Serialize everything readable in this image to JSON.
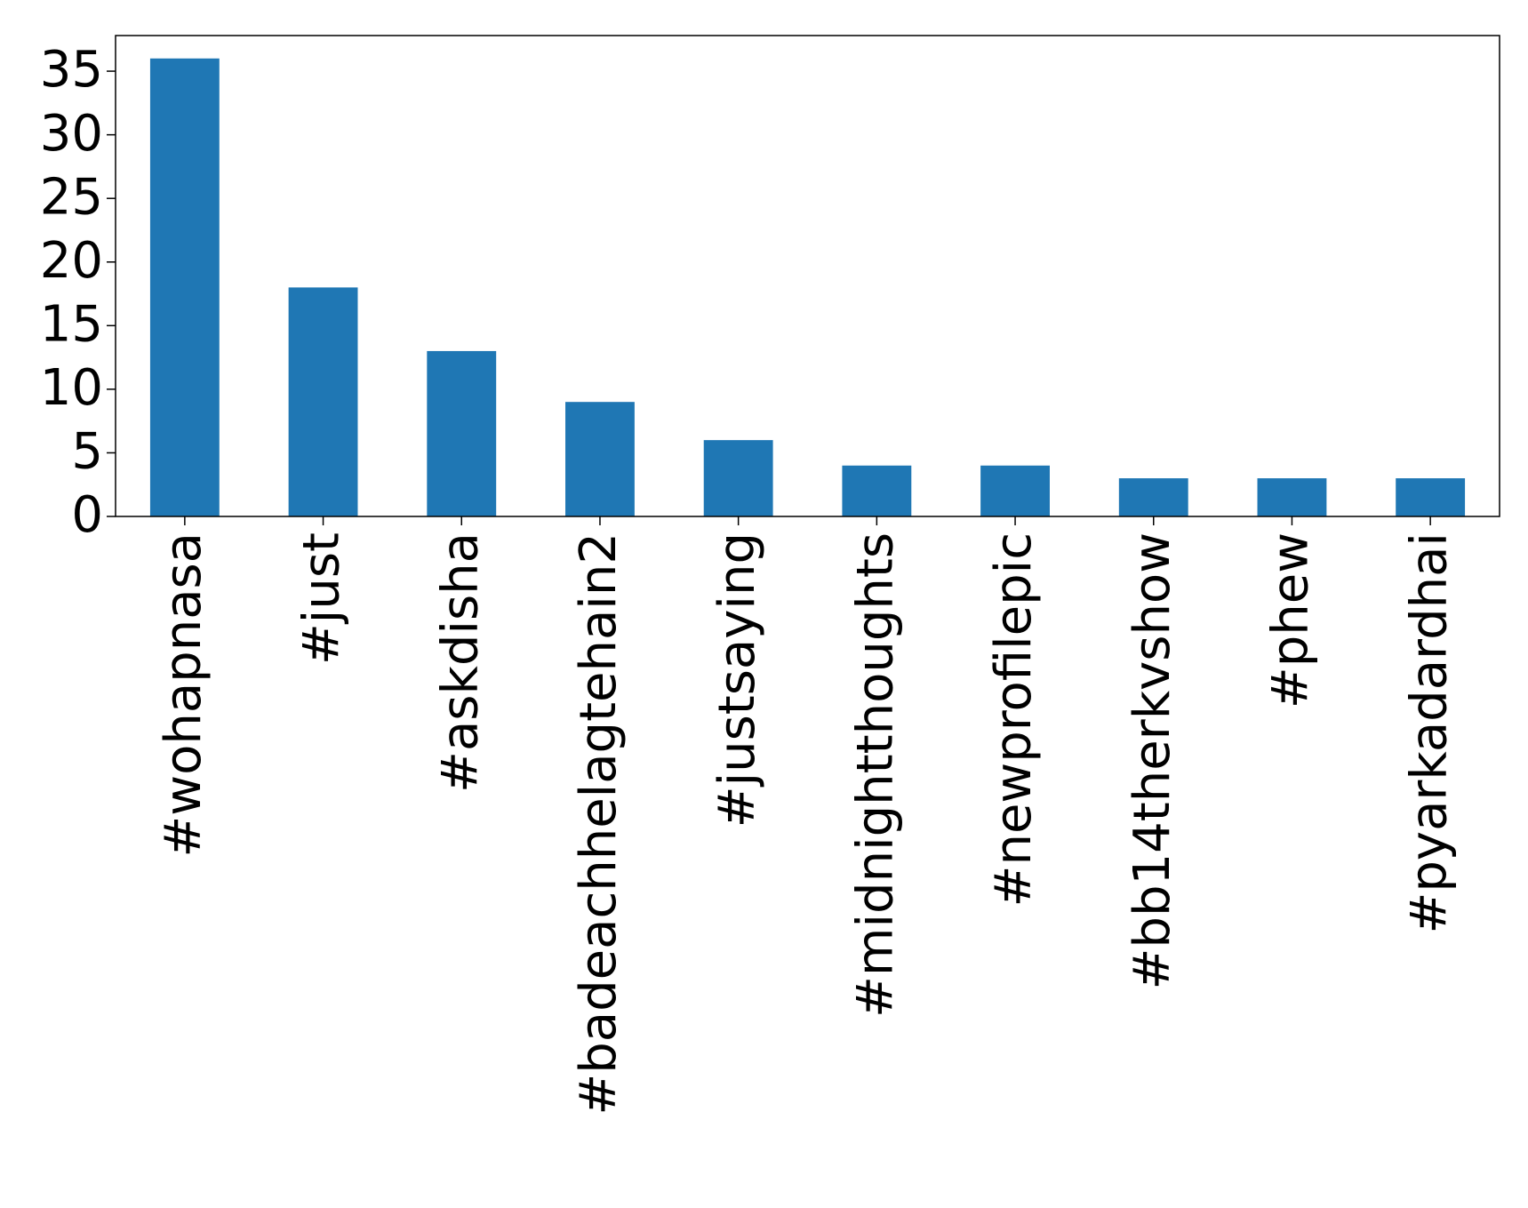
{
  "chart_data": {
    "type": "bar",
    "categories": [
      "#wohapnasa",
      "#just",
      "#askdisha",
      "#badeachhelagtehain2",
      "#justsaying",
      "#midnightthoughts",
      "#newprofilepic",
      "#bb14therkvshow",
      "#phew",
      "#pyarkadardhai"
    ],
    "values": [
      36,
      18,
      13,
      9,
      6,
      4,
      4,
      3,
      3,
      3
    ],
    "color": "#1f77b4",
    "ylim": [
      0,
      37.8
    ],
    "yticks": [
      0,
      5,
      10,
      15,
      20,
      25,
      30,
      35
    ],
    "grid": false
  }
}
